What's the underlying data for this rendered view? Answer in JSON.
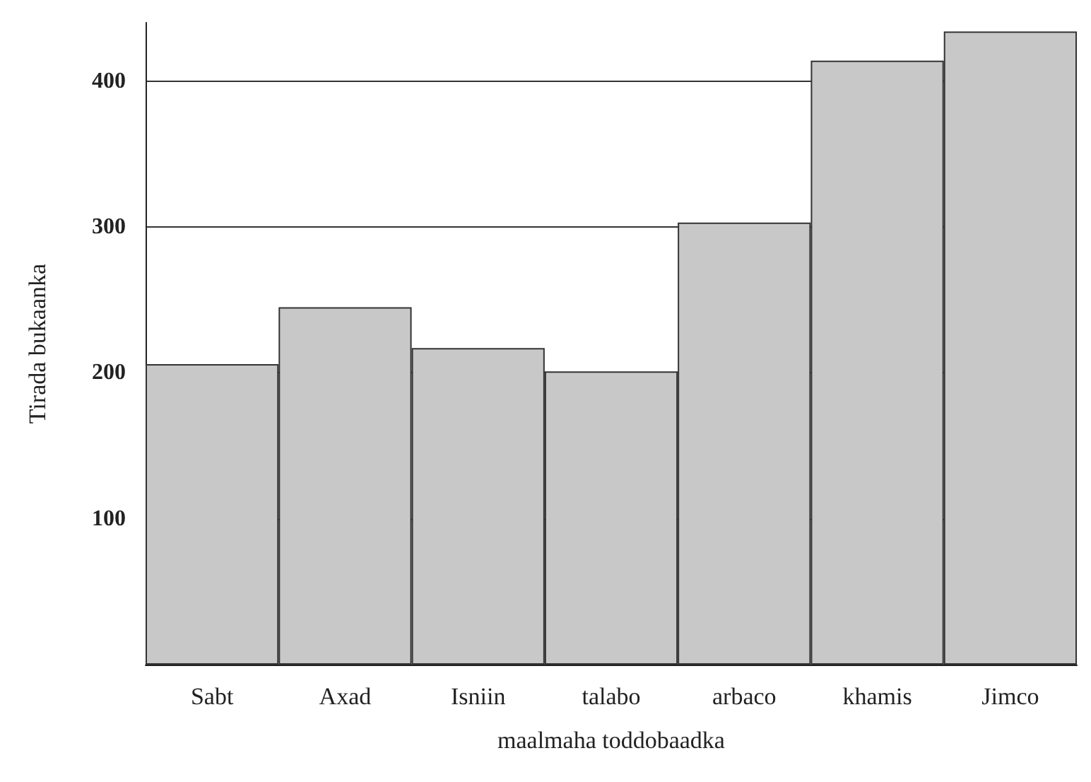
{
  "chart_data": {
    "type": "bar",
    "xlabel": "maalmaha toddobaadka",
    "ylabel": "Tirada bukaanka",
    "categories": [
      "Sabt",
      "Axad",
      "Isniin",
      "talabo",
      "arbaco",
      "khamis",
      "Jimco"
    ],
    "values": [
      206,
      245,
      217,
      201,
      303,
      414,
      434
    ],
    "color": "#c8c8c8",
    "ylim": [
      0,
      440
    ],
    "yticks": [
      100,
      200,
      300,
      400
    ],
    "grid": "y"
  }
}
